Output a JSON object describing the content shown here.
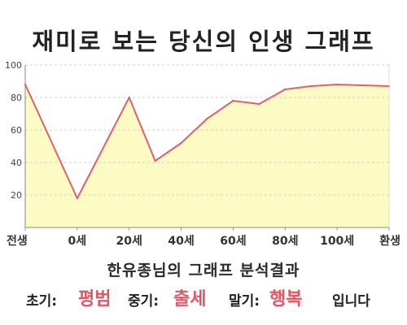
{
  "title": "재미로 보는 당신의 인생 그래프",
  "subtitle": "한유종님의 그래프 분석결과",
  "result": {
    "early_label": "초기:",
    "early_value": "평범",
    "middle_label": "중기:",
    "middle_value": "출세",
    "late_label": "말기:",
    "late_value": "행복",
    "ending": "입니다"
  },
  "colors": {
    "line": "#e0606a",
    "fill": "#fdfbc4",
    "result_highlight": "#e25563"
  },
  "chart_data": {
    "type": "area",
    "title": "재미로 보는 당신의 인생 그래프",
    "xlabel": "",
    "ylabel": "",
    "x_tick_labels": [
      "전생",
      "0세",
      "20세",
      "40세",
      "60세",
      "80세",
      "100세",
      "환생"
    ],
    "x": [
      -20,
      0,
      20,
      30,
      40,
      50,
      60,
      70,
      80,
      90,
      100,
      110,
      120
    ],
    "y": [
      88,
      18,
      80,
      41,
      52,
      67,
      78,
      76,
      85,
      87,
      88,
      87.5,
      87
    ],
    "ylim": [
      0,
      100
    ],
    "y_ticks": [
      20,
      40,
      60,
      80,
      100
    ],
    "grid": "horizontal dashed"
  }
}
